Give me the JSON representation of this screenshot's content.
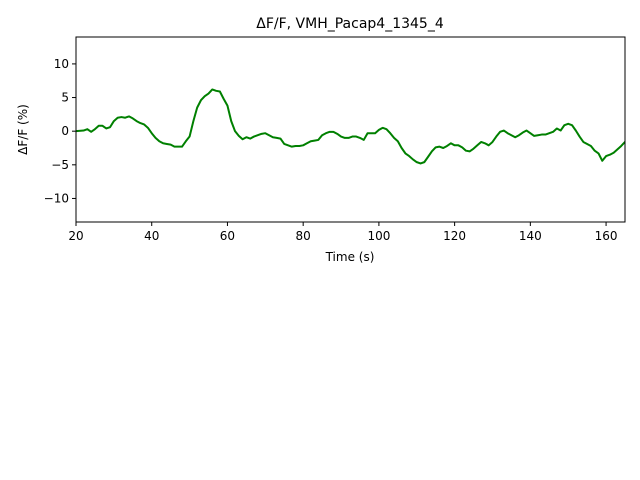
{
  "chart_data": {
    "type": "line",
    "title": "ΔF/F, VMH_Pacap4_1345_4",
    "xlabel": "Time (s)",
    "ylabel": "ΔF/F (%)",
    "xlim": [
      20,
      165
    ],
    "ylim": [
      -13.5,
      14
    ],
    "x_ticks": [
      20,
      40,
      60,
      80,
      100,
      120,
      140,
      160
    ],
    "x_tick_labels": [
      "20",
      "40",
      "60",
      "80",
      "100",
      "120",
      "140",
      "160"
    ],
    "y_ticks": [
      10,
      5,
      0,
      -5,
      -10
    ],
    "y_tick_labels": [
      "10",
      "5",
      "0",
      "−5",
      "−10"
    ],
    "grid": false,
    "series": [
      {
        "color": "#008000",
        "x": [
          20,
          22,
          23,
          24,
          25,
          26,
          27,
          28,
          29,
          30,
          31,
          32,
          33,
          34,
          35,
          36,
          37,
          38,
          39,
          40,
          41,
          42,
          43,
          44,
          45,
          46,
          47,
          48,
          49,
          50,
          51,
          52,
          53,
          54,
          55,
          56,
          57,
          58,
          59,
          60,
          61,
          62,
          63,
          64,
          65,
          66,
          67,
          68,
          69,
          70,
          71,
          72,
          73,
          74,
          75,
          76,
          77,
          78,
          79,
          80,
          81,
          82,
          83,
          84,
          85,
          86,
          87,
          88,
          89,
          90,
          91,
          92,
          93,
          94,
          95,
          96,
          97,
          98,
          99,
          100,
          101,
          102,
          103,
          104,
          105,
          106,
          107,
          108,
          109,
          110,
          111,
          112,
          113,
          114,
          115,
          116,
          117,
          118,
          119,
          120,
          121,
          122,
          123,
          124,
          125,
          126,
          127,
          128,
          129,
          130,
          131,
          132,
          133,
          134,
          135,
          136,
          137,
          138,
          139,
          140,
          141,
          142,
          143,
          144,
          145,
          146,
          147,
          148,
          149,
          150,
          151,
          152,
          153,
          154,
          155,
          156,
          157,
          158,
          159,
          160,
          161,
          162,
          163,
          164,
          165
        ],
        "y": [
          0.0,
          0.1,
          0.3,
          -0.1,
          0.3,
          0.8,
          0.8,
          0.4,
          0.6,
          1.5,
          2.0,
          2.1,
          2.0,
          2.2,
          1.9,
          1.5,
          1.2,
          1.0,
          0.5,
          -0.3,
          -1.0,
          -1.5,
          -1.8,
          -1.9,
          -2.0,
          -2.3,
          -2.3,
          -2.3,
          -1.5,
          -0.8,
          1.5,
          3.5,
          4.6,
          5.2,
          5.6,
          6.2,
          6.0,
          5.9,
          4.8,
          3.8,
          1.5,
          0.0,
          -0.7,
          -1.2,
          -0.9,
          -1.1,
          -0.8,
          -0.6,
          -0.4,
          -0.3,
          -0.6,
          -0.9,
          -1.0,
          -1.1,
          -1.9,
          -2.1,
          -2.3,
          -2.2,
          -2.2,
          -2.1,
          -1.8,
          -1.5,
          -1.4,
          -1.3,
          -0.6,
          -0.3,
          -0.1,
          -0.1,
          -0.4,
          -0.8,
          -1.0,
          -1.0,
          -0.8,
          -0.8,
          -1.0,
          -1.3,
          -0.3,
          -0.3,
          -0.3,
          0.2,
          0.5,
          0.3,
          -0.3,
          -1.0,
          -1.5,
          -2.5,
          -3.3,
          -3.7,
          -4.2,
          -4.6,
          -4.8,
          -4.6,
          -3.8,
          -3.0,
          -2.4,
          -2.3,
          -2.5,
          -2.2,
          -1.8,
          -2.1,
          -2.1,
          -2.4,
          -2.9,
          -3.0,
          -2.6,
          -2.1,
          -1.6,
          -1.8,
          -2.1,
          -1.6,
          -0.8,
          -0.1,
          0.1,
          -0.3,
          -0.6,
          -0.9,
          -0.6,
          -0.2,
          0.1,
          -0.3,
          -0.7,
          -0.6,
          -0.5,
          -0.5,
          -0.3,
          -0.1,
          0.4,
          0.1,
          0.9,
          1.1,
          0.9,
          0.1,
          -0.8,
          -1.6,
          -1.9,
          -2.2,
          -2.9,
          -3.3,
          -4.4,
          -3.7,
          -3.5,
          -3.2,
          -2.7,
          -2.2,
          -1.6
        ]
      }
    ]
  }
}
